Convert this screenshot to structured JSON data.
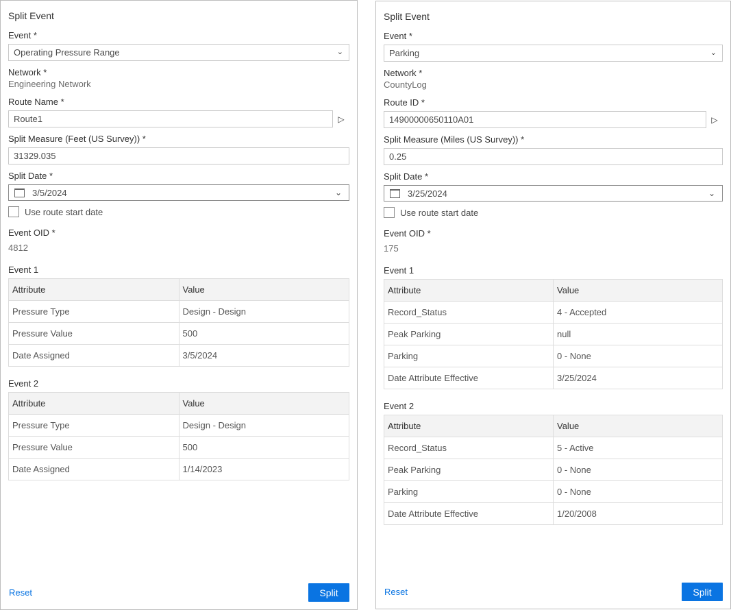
{
  "panels": [
    {
      "title": "Split Event",
      "event_label": "Event *",
      "event_value": "Operating Pressure Range",
      "network_label": "Network *",
      "network_value": "Engineering Network",
      "route_label": "Route Name *",
      "route_value": "Route1",
      "measure_label": "Split Measure (Feet (US Survey)) *",
      "measure_value": "31329.035",
      "date_label": "Split Date *",
      "date_value": "3/5/2024",
      "checkbox_label": "Use route start date",
      "checkbox_checked": false,
      "oid_label": "Event OID *",
      "oid_value": "4812",
      "events": [
        {
          "label": "Event 1",
          "headers": [
            "Attribute",
            "Value"
          ],
          "rows": [
            [
              "Pressure Type",
              "Design - Design"
            ],
            [
              "Pressure Value",
              "500"
            ],
            [
              "Date Assigned",
              "3/5/2024"
            ]
          ]
        },
        {
          "label": "Event 2",
          "headers": [
            "Attribute",
            "Value"
          ],
          "rows": [
            [
              "Pressure Type",
              "Design - Design"
            ],
            [
              "Pressure Value",
              "500"
            ],
            [
              "Date Assigned",
              "1/14/2023"
            ]
          ]
        }
      ],
      "reset_label": "Reset",
      "split_label": "Split"
    },
    {
      "title": "Split Event",
      "event_label": "Event *",
      "event_value": "Parking",
      "network_label": "Network *",
      "network_value": "CountyLog",
      "route_label": "Route ID *",
      "route_value": "14900000650110A01",
      "measure_label": "Split Measure (Miles (US Survey)) *",
      "measure_value": "0.25",
      "date_label": "Split Date *",
      "date_value": "3/25/2024",
      "checkbox_label": "Use route start date",
      "checkbox_checked": false,
      "oid_label": "Event OID *",
      "oid_value": "175",
      "events": [
        {
          "label": "Event 1",
          "headers": [
            "Attribute",
            "Value"
          ],
          "rows": [
            [
              "Record_Status",
              "4 - Accepted"
            ],
            [
              "Peak Parking",
              "null"
            ],
            [
              "Parking",
              "0 - None"
            ],
            [
              "Date Attribute Effective",
              "3/25/2024"
            ]
          ]
        },
        {
          "label": "Event 2",
          "headers": [
            "Attribute",
            "Value"
          ],
          "rows": [
            [
              "Record_Status",
              "5 - Active"
            ],
            [
              "Peak Parking",
              "0 - None"
            ],
            [
              "Parking",
              "0 - None"
            ],
            [
              "Date Attribute Effective",
              "1/20/2008"
            ]
          ]
        }
      ],
      "reset_label": "Reset",
      "split_label": "Split"
    }
  ],
  "colors": {
    "accent": "#0a74e2",
    "border": "#bdbdbd",
    "table_header_bg": "#f3f3f3"
  },
  "icons": {
    "select": "chevron-down-icon",
    "route_pick": "cursor-arrow-icon",
    "date": "calendar-icon"
  }
}
